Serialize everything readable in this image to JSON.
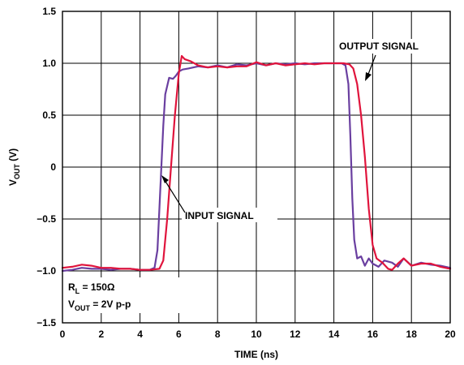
{
  "chart_data": {
    "type": "line",
    "xlabel": "TIME (ns)",
    "ylabel": {
      "main": "V",
      "sub": "OUT",
      "unit": " (V)"
    },
    "xlim": [
      0,
      20
    ],
    "ylim": [
      -1.5,
      1.5
    ],
    "xticks": [
      "0",
      "2",
      "4",
      "6",
      "8",
      "10",
      "12",
      "14",
      "16",
      "18",
      "20"
    ],
    "yticks": [
      "1.5",
      "1.0",
      "0.5",
      "0",
      "−0.5",
      "−1.0",
      "−1.5"
    ],
    "grid": true,
    "series": [
      {
        "name": "INPUT SIGNAL",
        "color": "#6a3fa0",
        "x": [
          0,
          0.5,
          1,
          1.5,
          2,
          2.5,
          3,
          3.5,
          4,
          4.5,
          4.75,
          4.9,
          5.0,
          5.1,
          5.2,
          5.3,
          5.5,
          5.7,
          5.85,
          6.0,
          6.2,
          6.5,
          7,
          7.5,
          8,
          8.5,
          9,
          9.5,
          10,
          10.5,
          11,
          11.5,
          12,
          12.5,
          13,
          13.5,
          14,
          14.4,
          14.6,
          14.75,
          14.85,
          14.95,
          15.05,
          15.2,
          15.4,
          15.6,
          15.8,
          16.0,
          16.3,
          16.6,
          17.0,
          17.3,
          17.6,
          18,
          18.5,
          19,
          19.5,
          20
        ],
        "y": [
          -1.0,
          -0.99,
          -0.97,
          -0.98,
          -0.98,
          -0.99,
          -0.98,
          -0.98,
          -0.99,
          -0.99,
          -0.97,
          -0.8,
          -0.4,
          0.0,
          0.4,
          0.7,
          0.86,
          0.85,
          0.88,
          0.92,
          0.94,
          0.95,
          0.97,
          0.96,
          0.98,
          0.96,
          0.99,
          0.98,
          1.0,
          0.98,
          1.0,
          0.99,
          1.0,
          0.99,
          1.0,
          1.0,
          1.0,
          1.0,
          0.98,
          0.8,
          0.3,
          -0.3,
          -0.7,
          -0.88,
          -0.86,
          -0.95,
          -0.88,
          -0.93,
          -0.96,
          -0.9,
          -0.92,
          -0.96,
          -0.88,
          -0.95,
          -0.92,
          -0.94,
          -0.95,
          -0.97
        ]
      },
      {
        "name": "OUTPUT SIGNAL",
        "color": "#e0143c",
        "x": [
          0,
          0.5,
          1,
          1.5,
          2,
          2.5,
          3,
          3.5,
          4,
          4.5,
          5.0,
          5.2,
          5.4,
          5.6,
          5.8,
          6.0,
          6.15,
          6.3,
          6.6,
          7,
          7.5,
          8,
          8.5,
          9,
          9.5,
          10,
          10.5,
          11,
          11.5,
          12,
          12.5,
          13,
          13.5,
          14,
          14.5,
          14.8,
          15.0,
          15.2,
          15.4,
          15.6,
          15.8,
          16.0,
          16.2,
          16.5,
          16.8,
          17.0,
          17.3,
          17.6,
          18,
          18.5,
          19,
          19.5,
          20
        ],
        "y": [
          -0.97,
          -0.96,
          -0.94,
          -0.95,
          -0.97,
          -0.97,
          -0.98,
          -0.98,
          -0.99,
          -0.99,
          -0.98,
          -0.9,
          -0.5,
          0.0,
          0.5,
          0.9,
          1.07,
          1.04,
          1.02,
          0.98,
          0.96,
          0.97,
          0.96,
          0.97,
          0.97,
          1.01,
          0.98,
          1.0,
          0.98,
          0.99,
          1.0,
          0.99,
          1.0,
          1.0,
          1.0,
          0.99,
          0.95,
          0.8,
          0.5,
          0.1,
          -0.4,
          -0.75,
          -0.88,
          -0.92,
          -0.98,
          -0.99,
          -0.93,
          -0.88,
          -0.95,
          -0.93,
          -0.93,
          -0.96,
          -0.98
        ]
      }
    ],
    "annotations": [
      {
        "id": "output",
        "text": "OUTPUT SIGNAL",
        "target": [
          15.3,
          0.75
        ]
      },
      {
        "id": "input",
        "text": "INPUT SIGNAL",
        "target": [
          5.1,
          -0.12
        ]
      }
    ],
    "conditions": [
      {
        "main": "R",
        "sub": "L",
        "rest": " = 150Ω"
      },
      {
        "main": "V",
        "sub": "OUT",
        "rest": " = 2V p-p"
      }
    ]
  }
}
